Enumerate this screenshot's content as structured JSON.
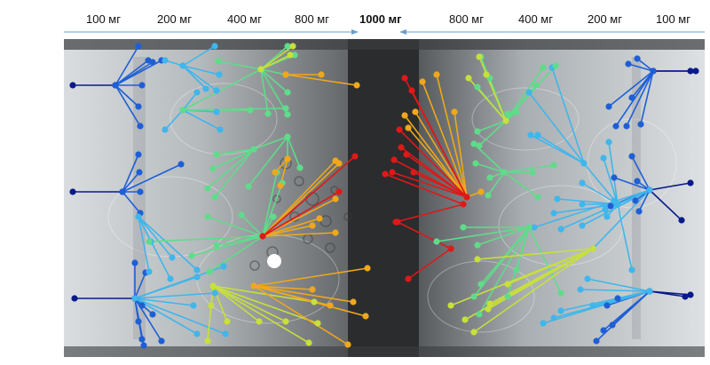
{
  "dose_labels": {
    "l1": "100 мг",
    "l2": "200 мг",
    "l3": "400 мг",
    "l4": "800 мг",
    "center": "1000 мг",
    "r4": "800 мг",
    "r3": "400 мг",
    "r2": "200 мг",
    "r1": "100 мг"
  },
  "colors": {
    "arrow": "#6a9fc8",
    "dose_100": "#0a1a8a",
    "dose_200": "#1e5fd6",
    "dose_400": "#3fb6ec",
    "dose_600": "#5fdc8a",
    "dose_800": "#c8e03a",
    "dose_900": "#f0a81a",
    "dose_1000": "#e01818"
  }
}
